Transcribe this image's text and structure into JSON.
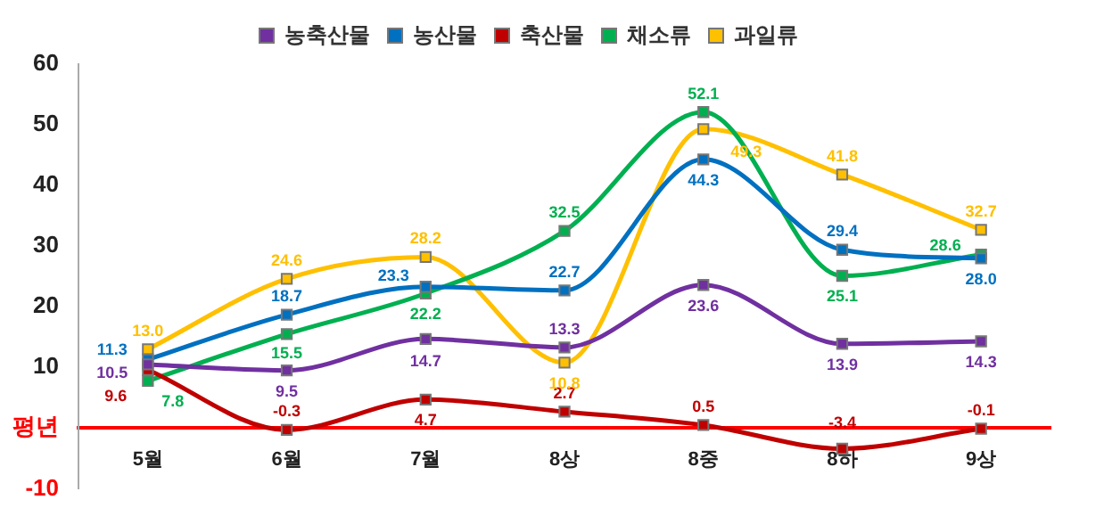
{
  "chart_data": {
    "type": "line",
    "categories": [
      "5월",
      "6월",
      "7월",
      "8상",
      "8중",
      "8하",
      "9상"
    ],
    "series": [
      {
        "name": "농축산물",
        "color": "#7030a0",
        "values": [
          10.5,
          9.5,
          14.7,
          13.3,
          23.6,
          13.9,
          14.3
        ],
        "value_labels": [
          "10.5",
          "9.5",
          "14.7",
          "13.3",
          "23.6",
          "13.9",
          "14.3"
        ]
      },
      {
        "name": "농산물",
        "color": "#0070c0",
        "values": [
          11.3,
          18.7,
          23.3,
          22.7,
          44.3,
          29.4,
          28.0
        ],
        "value_labels": [
          "11.3",
          "18.7",
          "23.3",
          "22.7",
          "44.3",
          "29.4",
          "28.0"
        ]
      },
      {
        "name": "축산물",
        "color": "#c00000",
        "values": [
          9.6,
          -0.3,
          4.7,
          2.7,
          0.5,
          -3.4,
          -0.1
        ],
        "value_labels": [
          "9.6",
          "-0.3",
          "4.7",
          "2.7",
          "0.5",
          "-3.4",
          "-0.1"
        ]
      },
      {
        "name": "채소류",
        "color": "#00b050",
        "values": [
          7.8,
          15.5,
          22.2,
          32.5,
          52.1,
          25.1,
          28.6
        ],
        "value_labels": [
          "7.8",
          "15.5",
          "22.2",
          "32.5",
          "52.1",
          "25.1",
          "28.6"
        ]
      },
      {
        "name": "과일류",
        "color": "#ffc000",
        "values": [
          13.0,
          24.6,
          28.2,
          10.8,
          49.3,
          41.8,
          32.7
        ],
        "value_labels": [
          "13.0",
          "24.6",
          "28.2",
          "10.8",
          "49.3",
          "41.8",
          "32.7"
        ]
      }
    ],
    "ylim": [
      -10,
      60
    ],
    "yticks": [
      -10,
      {
        "value": 0,
        "label": "평년"
      },
      10,
      20,
      30,
      40,
      50,
      60
    ],
    "grid": false,
    "legend": "top",
    "marker": "square",
    "line_style": "solid"
  }
}
